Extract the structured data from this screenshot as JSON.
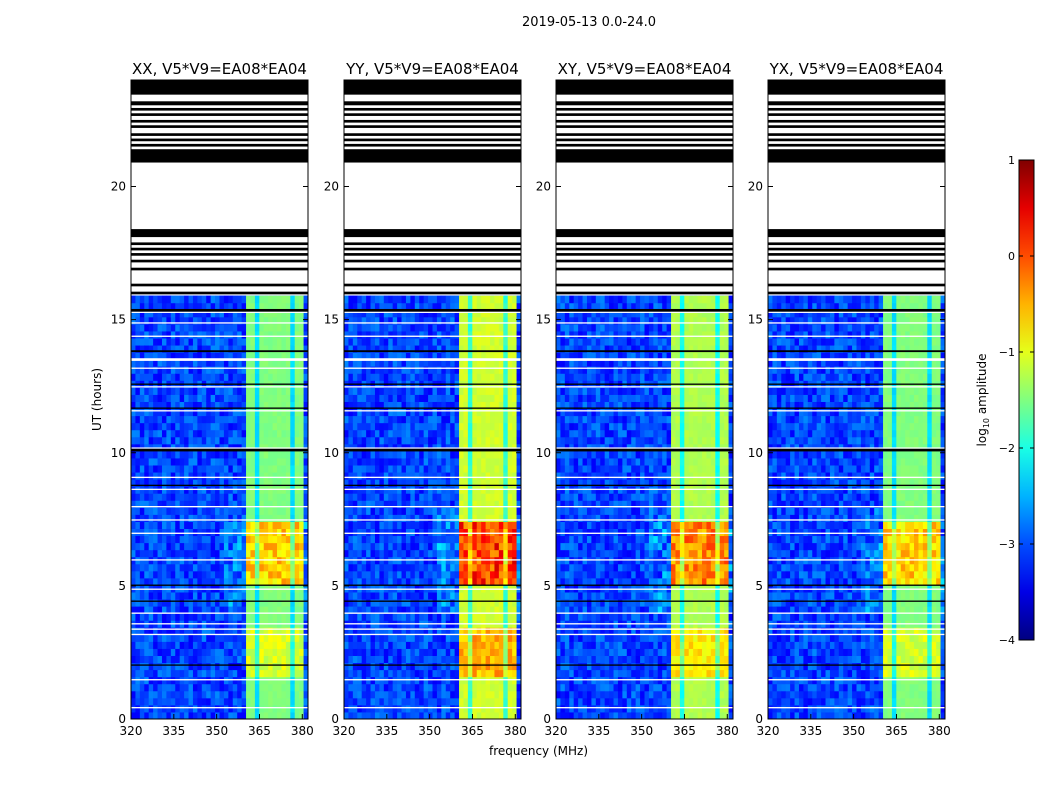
{
  "chart_data": {
    "type": "heatmap",
    "suptitle": "2019-05-13 0.0-24.0",
    "xlabel": "frequency (MHz)",
    "ylabel": "UT (hours)",
    "xlim": [
      320,
      382
    ],
    "ylim": [
      0,
      24
    ],
    "xticks": [
      320,
      335,
      350,
      365,
      380
    ],
    "yticks": [
      0,
      5,
      10,
      15,
      20
    ],
    "colorscale": "jet",
    "colorbar": {
      "label": "log10 amplitude",
      "label_prefix": "log",
      "label_sub": "10",
      "label_suffix": " amplitude",
      "min": -4,
      "max": 1,
      "ticks": [
        1,
        0,
        -1,
        -2,
        -3,
        -4
      ]
    },
    "rfi_band_mhz": [
      360,
      380
    ],
    "data_end_hours": 15.9,
    "panels": [
      {
        "title": "XX, V5*V9=EA08*EA04",
        "show_ylabel": true,
        "show_xlabel": false,
        "band_level_low": -1.7,
        "band_level_peak": -0.3
      },
      {
        "title": "YY, V5*V9=EA08*EA04",
        "show_ylabel": false,
        "show_xlabel": true,
        "band_level_low": -1.4,
        "band_level_peak": 0.6
      },
      {
        "title": "XY, V5*V9=EA08*EA04",
        "show_ylabel": false,
        "show_xlabel": false,
        "band_level_low": -1.5,
        "band_level_peak": 0.1
      },
      {
        "title": "YX, V5*V9=EA08*EA04",
        "show_ylabel": false,
        "show_xlabel": false,
        "band_level_low": -1.7,
        "band_level_peak": -0.3
      }
    ],
    "flagged_black_hours": [
      [
        24.0,
        23.45
      ],
      [
        23.2,
        23.05
      ],
      [
        22.95,
        22.85
      ],
      [
        22.75,
        22.65
      ],
      [
        22.5,
        22.4
      ],
      [
        22.3,
        22.2
      ],
      [
        22.0,
        21.9
      ],
      [
        21.8,
        21.7
      ],
      [
        21.6,
        21.5
      ],
      [
        21.4,
        20.9
      ],
      [
        18.4,
        18.1
      ],
      [
        17.9,
        17.8
      ],
      [
        17.7,
        17.6
      ],
      [
        17.5,
        17.4
      ],
      [
        17.25,
        17.15
      ],
      [
        16.95,
        16.85
      ],
      [
        16.35,
        16.25
      ],
      [
        16.05,
        15.95
      ],
      [
        15.4,
        15.3
      ],
      [
        13.85,
        13.78
      ],
      [
        12.6,
        12.55
      ],
      [
        11.7,
        11.65
      ],
      [
        10.15,
        10.05
      ],
      [
        8.8,
        8.75
      ],
      [
        5.05,
        5.0
      ],
      [
        4.45,
        4.4
      ],
      [
        2.05,
        2.0
      ]
    ],
    "flagged_white_hours": [
      [
        15.3,
        15.25
      ],
      [
        14.9,
        14.85
      ],
      [
        14.4,
        14.35
      ],
      [
        13.55,
        13.45
      ],
      [
        13.2,
        13.15
      ],
      [
        12.5,
        12.45
      ],
      [
        11.6,
        11.55
      ],
      [
        10.2,
        10.15
      ],
      [
        9.1,
        9.05
      ],
      [
        8.65,
        8.6
      ],
      [
        8.0,
        7.95
      ],
      [
        7.5,
        7.45
      ],
      [
        7.0,
        6.95
      ],
      [
        6.0,
        5.95
      ],
      [
        4.9,
        4.85
      ],
      [
        4.0,
        3.95
      ],
      [
        3.6,
        3.55
      ],
      [
        3.4,
        3.35
      ],
      [
        3.2,
        3.15
      ],
      [
        1.5,
        1.45
      ],
      [
        0.45,
        0.4
      ]
    ]
  }
}
